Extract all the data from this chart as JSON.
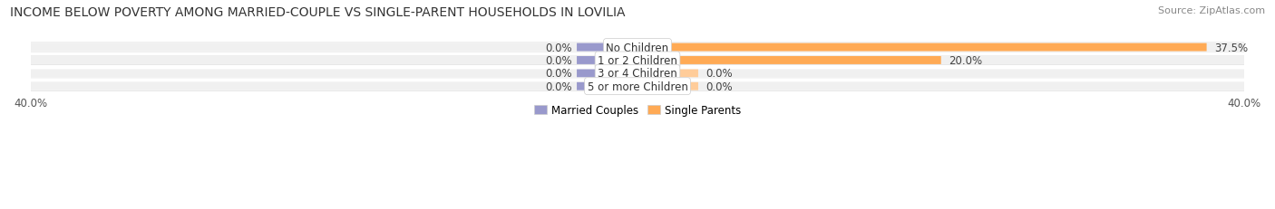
{
  "title": "INCOME BELOW POVERTY AMONG MARRIED-COUPLE VS SINGLE-PARENT HOUSEHOLDS IN LOVILIA",
  "source": "Source: ZipAtlas.com",
  "categories": [
    "No Children",
    "1 or 2 Children",
    "3 or 4 Children",
    "5 or more Children"
  ],
  "married_values": [
    0.0,
    0.0,
    0.0,
    0.0
  ],
  "single_values": [
    37.5,
    20.0,
    0.0,
    0.0
  ],
  "married_color": "#9999cc",
  "single_color": "#ffaa55",
  "single_color_stub": "#ffcc99",
  "bar_bg_color": "#f0f0f0",
  "row_bg_color": "#f5f5f5",
  "axis_limit": 40.0,
  "stub_size": 4.0,
  "title_fontsize": 10,
  "source_fontsize": 8,
  "label_fontsize": 8.5,
  "tick_fontsize": 8.5,
  "legend_fontsize": 8.5,
  "fig_width": 14.06,
  "fig_height": 2.32
}
